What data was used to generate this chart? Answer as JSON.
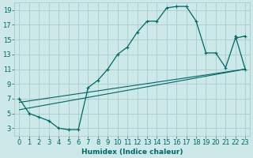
{
  "xlabel": "Humidex (Indice chaleur)",
  "bg_color": "#cce8e8",
  "grid_color": "#aacccc",
  "line_color": "#006666",
  "xlim": [
    -0.5,
    23.5
  ],
  "ylim": [
    2,
    20
  ],
  "yticks": [
    3,
    5,
    7,
    9,
    11,
    13,
    15,
    17,
    19
  ],
  "xticks": [
    0,
    1,
    2,
    3,
    4,
    5,
    6,
    7,
    8,
    9,
    10,
    11,
    12,
    13,
    14,
    15,
    16,
    17,
    18,
    19,
    20,
    21,
    22,
    23
  ],
  "main_line": {
    "x": [
      0,
      1,
      2,
      3,
      4,
      5,
      6,
      7,
      8,
      9,
      10,
      11,
      12,
      13,
      14,
      15,
      16,
      17,
      18,
      19,
      20,
      21,
      22,
      23
    ],
    "y": [
      7,
      5,
      4.5,
      4,
      3,
      2.8,
      2.8,
      8.5,
      9.5,
      11,
      13,
      14,
      16,
      17.5,
      17.5,
      19.3,
      19.5,
      19.5,
      17.5,
      13.2,
      13.2,
      11.2,
      15.2,
      15.5
    ]
  },
  "tail_line": {
    "x": [
      22,
      23
    ],
    "y": [
      15.5,
      11
    ]
  },
  "diag_line1": {
    "x": [
      0,
      23
    ],
    "y": [
      6.5,
      11
    ]
  },
  "diag_line2": {
    "x": [
      0,
      23
    ],
    "y": [
      5.5,
      11
    ]
  }
}
